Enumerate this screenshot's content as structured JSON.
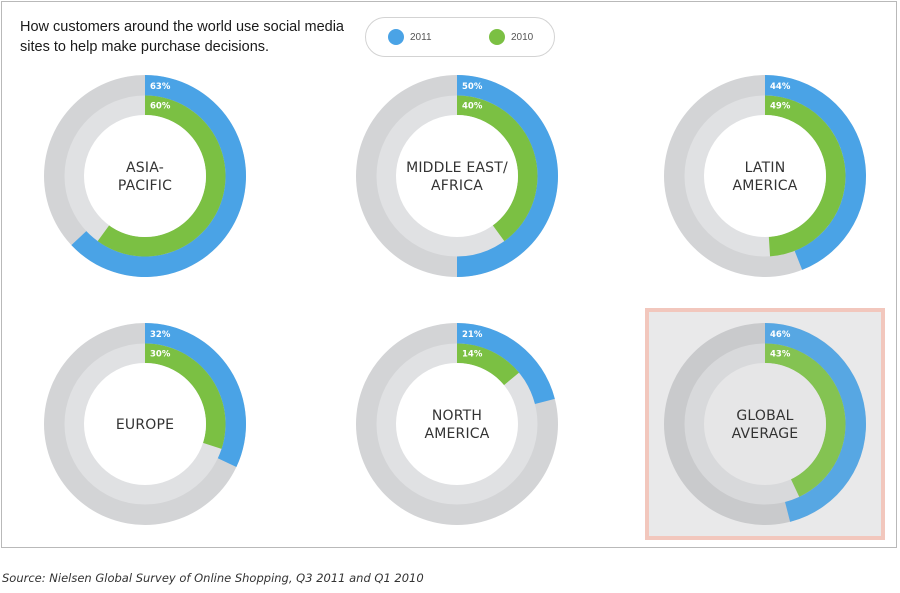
{
  "title": "How customers around the world use social media sites to help make purchase decisions.",
  "source": "Source: Nielsen Global Survey of Online Shopping, Q3 2011 and Q1 2010",
  "legend": [
    {
      "label": "2011",
      "color": "#4aa3e6"
    },
    {
      "label": "2010",
      "color": "#7bc043"
    }
  ],
  "chart_data": {
    "type": "donut",
    "title": "How customers around the world use social media sites to help make purchase decisions.",
    "unit": "%",
    "series": [
      {
        "name": "2011",
        "color": "#4aa3e6"
      },
      {
        "name": "2010",
        "color": "#7bc043"
      }
    ],
    "regions": [
      {
        "name": "ASIA-\nPACIFIC",
        "values": {
          "2011": 63,
          "2010": 60
        },
        "highlighted": false
      },
      {
        "name": "MIDDLE EAST/\nAFRICA",
        "values": {
          "2011": 50,
          "2010": 40
        },
        "highlighted": false
      },
      {
        "name": "LATIN\nAMERICA",
        "values": {
          "2011": 44,
          "2010": 49
        },
        "highlighted": false
      },
      {
        "name": "EUROPE",
        "values": {
          "2011": 32,
          "2010": 30
        },
        "highlighted": false
      },
      {
        "name": "NORTH\nAMERICA",
        "values": {
          "2011": 21,
          "2010": 14
        },
        "highlighted": false
      },
      {
        "name": "GLOBAL\nAVERAGE",
        "values": {
          "2011": 46,
          "2010": 43
        },
        "highlighted": true
      }
    ]
  }
}
